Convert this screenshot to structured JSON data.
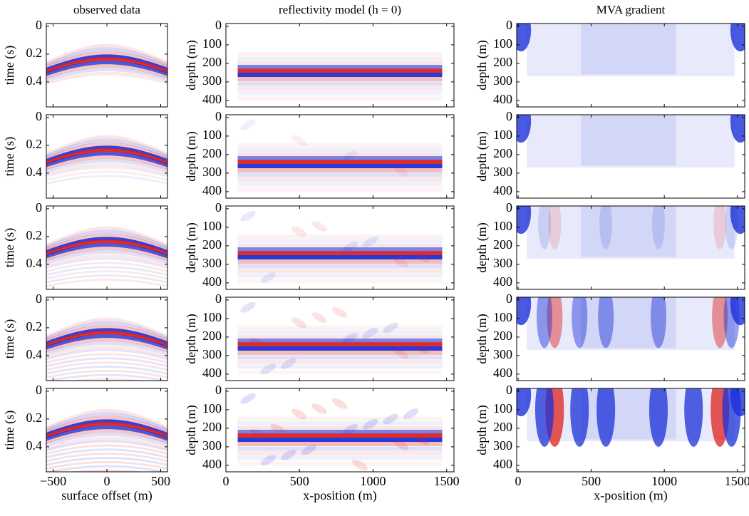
{
  "chart_data": [
    {
      "type": "heatmap",
      "title": "observed data",
      "ylabel": "time (s)",
      "xlim": [
        -563,
        563
      ],
      "ylim": [
        -0.02,
        0.58
      ],
      "yticks": [
        0,
        0.2,
        0.4
      ]
    },
    {
      "type": "heatmap",
      "title": "reflectivity model (h = 0)",
      "ylabel": "depth (m)",
      "xlim": [
        0,
        1550
      ],
      "ylim": [
        -15,
        435
      ],
      "yticks": [
        0,
        100,
        200,
        300,
        400
      ]
    },
    {
      "type": "heatmap",
      "title": "MVA gradient",
      "ylabel": "depth (m)",
      "xlim": [
        -10,
        1550
      ],
      "ylim": [
        -15,
        435
      ],
      "yticks": [
        0,
        100,
        200,
        300,
        400
      ]
    },
    {
      "type": "heatmap",
      "ylabel": "time (s)",
      "xlim": [
        -563,
        563
      ],
      "ylim": [
        -0.02,
        0.58
      ],
      "yticks": [
        0,
        0.2,
        0.4
      ]
    },
    {
      "type": "heatmap",
      "ylabel": "depth (m)",
      "xlim": [
        0,
        1550
      ],
      "ylim": [
        -15,
        435
      ],
      "yticks": [
        0,
        100,
        200,
        300,
        400
      ]
    },
    {
      "type": "heatmap",
      "ylabel": "depth (m)",
      "xlim": [
        -10,
        1550
      ],
      "ylim": [
        -15,
        435
      ],
      "yticks": [
        0,
        100,
        200,
        300,
        400
      ]
    },
    {
      "type": "heatmap",
      "ylabel": "time (s)",
      "xlim": [
        -563,
        563
      ],
      "ylim": [
        -0.02,
        0.58
      ],
      "yticks": [
        0,
        0.2,
        0.4
      ]
    },
    {
      "type": "heatmap",
      "ylabel": "depth (m)",
      "xlim": [
        0,
        1550
      ],
      "ylim": [
        -15,
        435
      ],
      "yticks": [
        0,
        100,
        200,
        300,
        400
      ]
    },
    {
      "type": "heatmap",
      "ylabel": "depth (m)",
      "xlim": [
        -10,
        1550
      ],
      "ylim": [
        -15,
        435
      ],
      "yticks": [
        0,
        100,
        200,
        300,
        400
      ]
    },
    {
      "type": "heatmap",
      "ylabel": "time (s)",
      "xlim": [
        -563,
        563
      ],
      "ylim": [
        -0.02,
        0.58
      ],
      "yticks": [
        0,
        0.2,
        0.4
      ]
    },
    {
      "type": "heatmap",
      "ylabel": "depth (m)",
      "xlim": [
        0,
        1550
      ],
      "ylim": [
        -15,
        435
      ],
      "yticks": [
        0,
        100,
        200,
        300,
        400
      ]
    },
    {
      "type": "heatmap",
      "ylabel": "depth (m)",
      "xlim": [
        -10,
        1550
      ],
      "ylim": [
        -15,
        435
      ],
      "yticks": [
        0,
        100,
        200,
        300,
        400
      ]
    },
    {
      "type": "heatmap",
      "ylabel": "time (s)",
      "xlabel": "surface offset (m)",
      "xlim": [
        -563,
        563
      ],
      "xticks": [
        {
          "value": -500,
          "label": "−500"
        },
        0,
        500
      ],
      "ylim": [
        -0.02,
        0.58
      ],
      "yticks": [
        0,
        0.2,
        0.4
      ]
    },
    {
      "type": "heatmap",
      "ylabel": "depth (m)",
      "xlabel": "x-position (m)",
      "xlim": [
        0,
        1550
      ],
      "xticks": [
        0,
        500,
        1000,
        1500
      ],
      "ylim": [
        -15,
        435
      ],
      "yticks": [
        0,
        100,
        200,
        300,
        400
      ]
    },
    {
      "type": "heatmap",
      "ylabel": "depth (m)",
      "xlabel": "x-position (m)",
      "xlim": [
        -10,
        1550
      ],
      "xticks": [
        0,
        500,
        1000,
        1500
      ],
      "ylim": [
        -15,
        435
      ],
      "yticks": [
        0,
        100,
        200,
        300,
        400
      ]
    }
  ]
}
